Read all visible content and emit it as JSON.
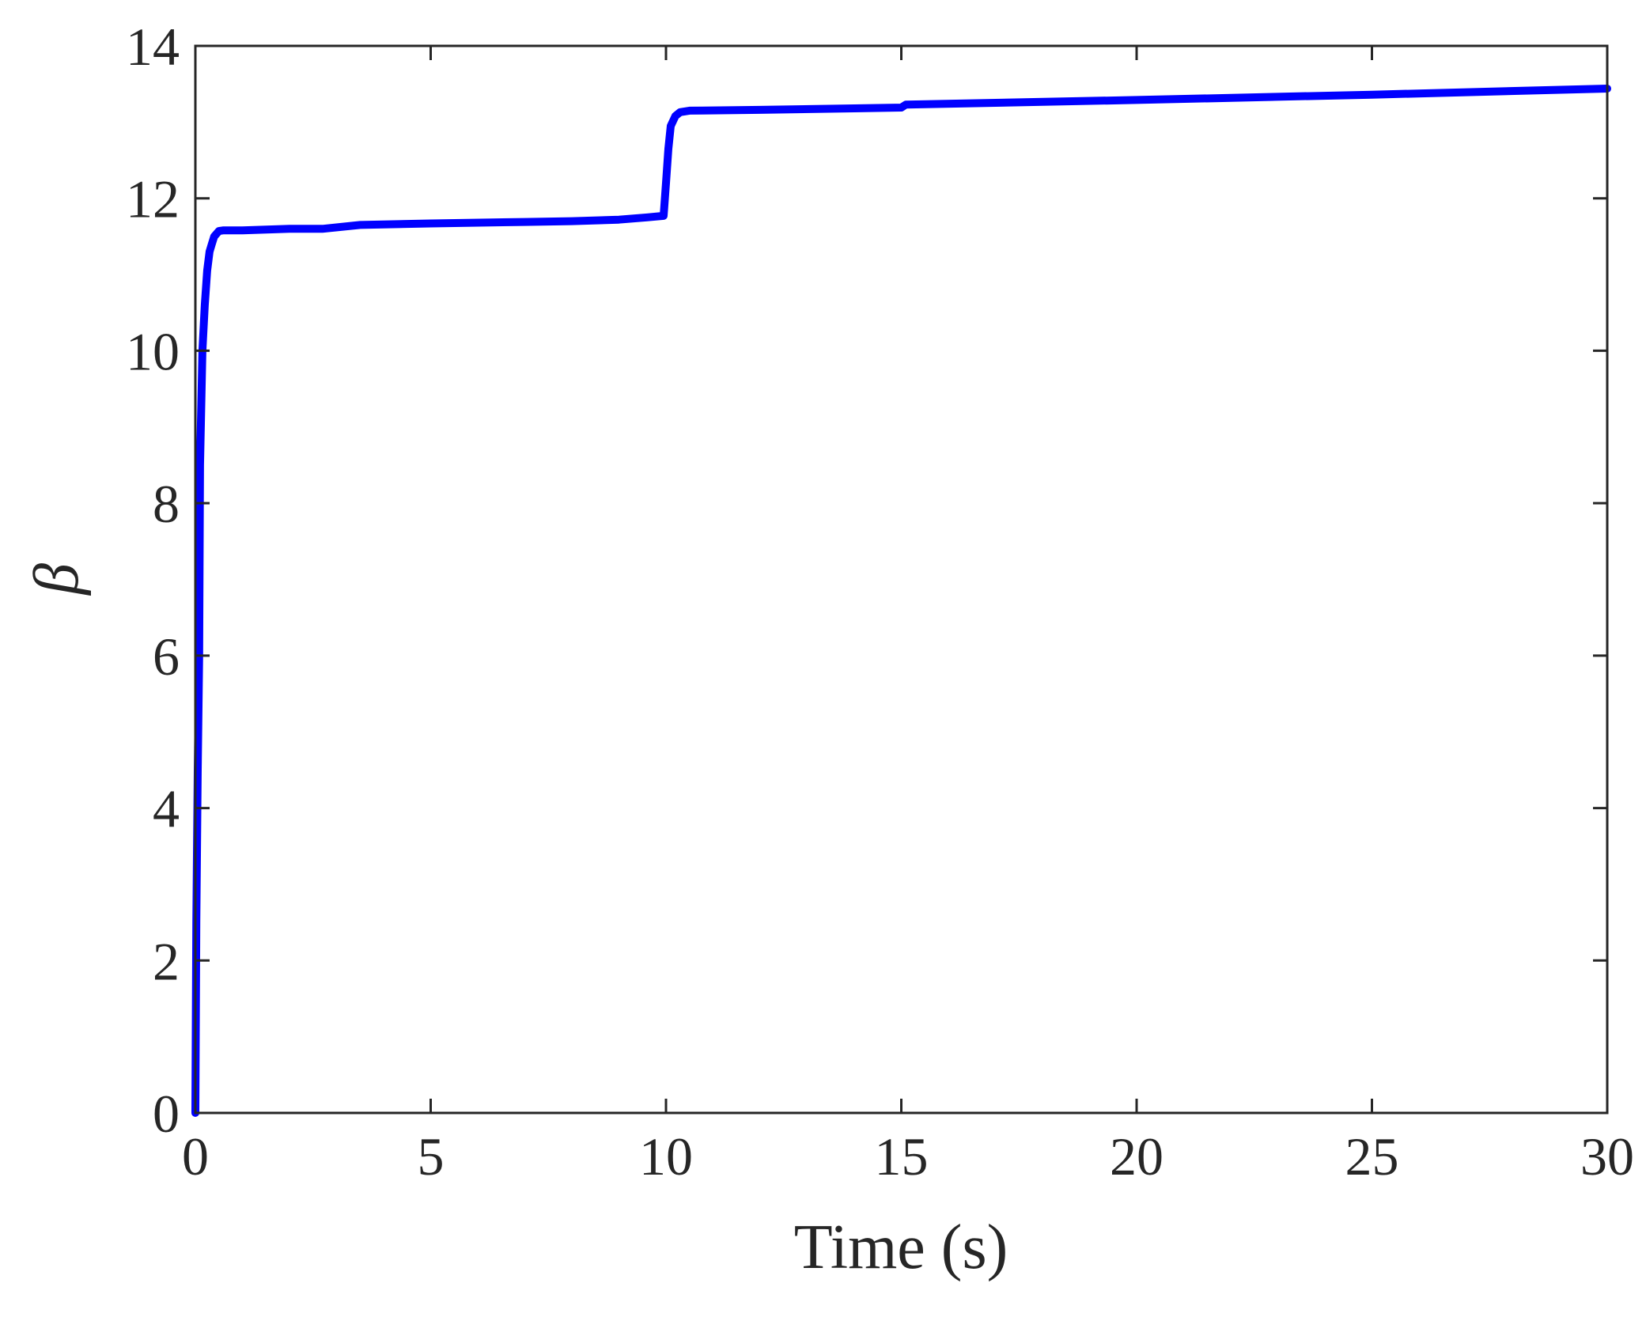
{
  "chart_data": {
    "type": "line",
    "title": "",
    "xlabel": "Time (s)",
    "ylabel": "β",
    "xlim": [
      0,
      30
    ],
    "ylim": [
      0,
      14
    ],
    "xticks": [
      0,
      5,
      10,
      15,
      20,
      25,
      30
    ],
    "yticks": [
      0,
      2,
      4,
      6,
      8,
      10,
      12,
      14
    ],
    "xtick_labels": [
      "0",
      "5",
      "10",
      "15",
      "20",
      "25",
      "30"
    ],
    "ytick_labels": [
      "0",
      "2",
      "4",
      "6",
      "8",
      "10",
      "12",
      "14"
    ],
    "grid": false,
    "box": true,
    "line_color": "#0000FF",
    "axis_color": "#262626",
    "series": [
      {
        "x": [
          0,
          0.02,
          0.05,
          0.08,
          0.1,
          0.15,
          0.2,
          0.25,
          0.3,
          0.35,
          0.4,
          0.5,
          0.6,
          1.0,
          2.0,
          2.7,
          3.5,
          5.0,
          7.0,
          8.0,
          9.0,
          9.6,
          9.95,
          10.0,
          10.05,
          10.1,
          10.2,
          10.3,
          10.5,
          12.0,
          14.0,
          15.0,
          15.1,
          20.0,
          25.0,
          30.0
        ],
        "y": [
          0,
          2.5,
          4.5,
          6.0,
          8.5,
          10.0,
          10.6,
          11.05,
          11.3,
          11.4,
          11.5,
          11.57,
          11.58,
          11.58,
          11.6,
          11.6,
          11.65,
          11.67,
          11.69,
          11.7,
          11.72,
          11.75,
          11.77,
          12.2,
          12.65,
          12.95,
          13.08,
          13.13,
          13.15,
          13.16,
          13.18,
          13.19,
          13.23,
          13.29,
          13.36,
          13.44
        ]
      }
    ]
  }
}
